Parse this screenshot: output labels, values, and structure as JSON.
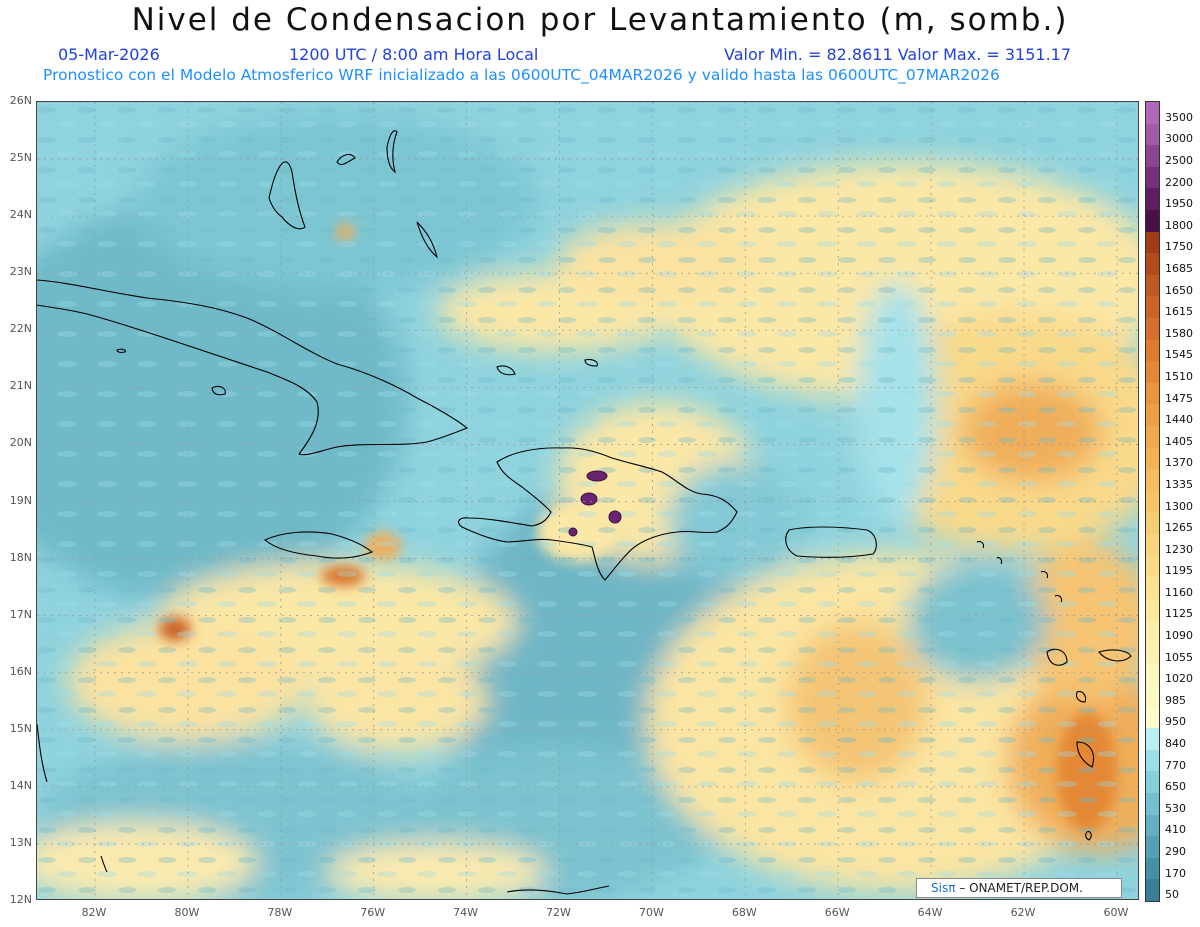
{
  "header": {
    "title": "Nivel de Condensacion por Levantamiento (m, somb.)",
    "date": "05-Mar-2026",
    "time": "1200 UTC / 8:00 am Hora Local",
    "minmax": "Valor Min. = 82.8611  Valor Max. = 3151.17",
    "model_info": "Pronostico con el Modelo Atmosferico WRF inicializado a las 0600UTC_04MAR2026 y valido hasta las  0600UTC_07MAR2026"
  },
  "map": {
    "lat_labels": [
      "26N",
      "25N",
      "24N",
      "23N",
      "22N",
      "21N",
      "20N",
      "19N",
      "18N",
      "17N",
      "16N",
      "15N",
      "14N",
      "13N",
      "12N"
    ],
    "lon_labels": [
      "82W",
      "80W",
      "78W",
      "76W",
      "74W",
      "72W",
      "70W",
      "68W",
      "66W",
      "64W",
      "62W",
      "60W"
    ],
    "credit_logo": "Sisπ",
    "credit_text": "– ONAMET/REP.DOM."
  },
  "colorbar": {
    "labels": [
      "3500",
      "3000",
      "2500",
      "2200",
      "1950",
      "1800",
      "1750",
      "1685",
      "1650",
      "1615",
      "1580",
      "1545",
      "1510",
      "1475",
      "1440",
      "1405",
      "1370",
      "1335",
      "1300",
      "1265",
      "1230",
      "1195",
      "1160",
      "1125",
      "1090",
      "1055",
      "1020",
      "985",
      "950",
      "840",
      "770",
      "650",
      "530",
      "410",
      "290",
      "170",
      "50"
    ],
    "colors": [
      "#b268b8",
      "#a05aa8",
      "#8a4690",
      "#74307a",
      "#5e1e62",
      "#4a1048",
      "#a23c18",
      "#b24a1c",
      "#c05822",
      "#cc6428",
      "#d6702c",
      "#de7c30",
      "#e48836",
      "#ea943c",
      "#ee9e44",
      "#f2a84c",
      "#f4b254",
      "#f6bc5e",
      "#f8c466",
      "#f8cc70",
      "#fad47a",
      "#fadc86",
      "#fae290",
      "#fae89c",
      "#faeea8",
      "#fbf2b2",
      "#fcf6bc",
      "#fcf8c4",
      "#fdfacc",
      "#b8eef4",
      "#9adfe8",
      "#86d0dc",
      "#74c0d0",
      "#64b0c2",
      "#54a0b4",
      "#4690a6",
      "#387e96"
    ],
    "colors_note": "lowest value at bottom"
  }
}
